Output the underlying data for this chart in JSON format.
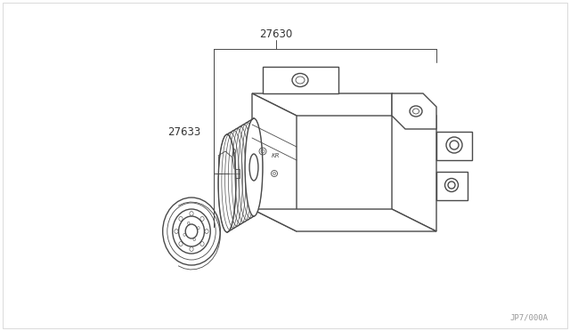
{
  "bg_color": "#ffffff",
  "line_color": "#4a4a4a",
  "label_27630": "27630",
  "label_27633": "27633",
  "watermark": "JP7/000A",
  "fig_width": 6.4,
  "fig_height": 3.72,
  "dpi": 100,
  "border_color": "#bbbbbb",
  "text_color": "#333333"
}
